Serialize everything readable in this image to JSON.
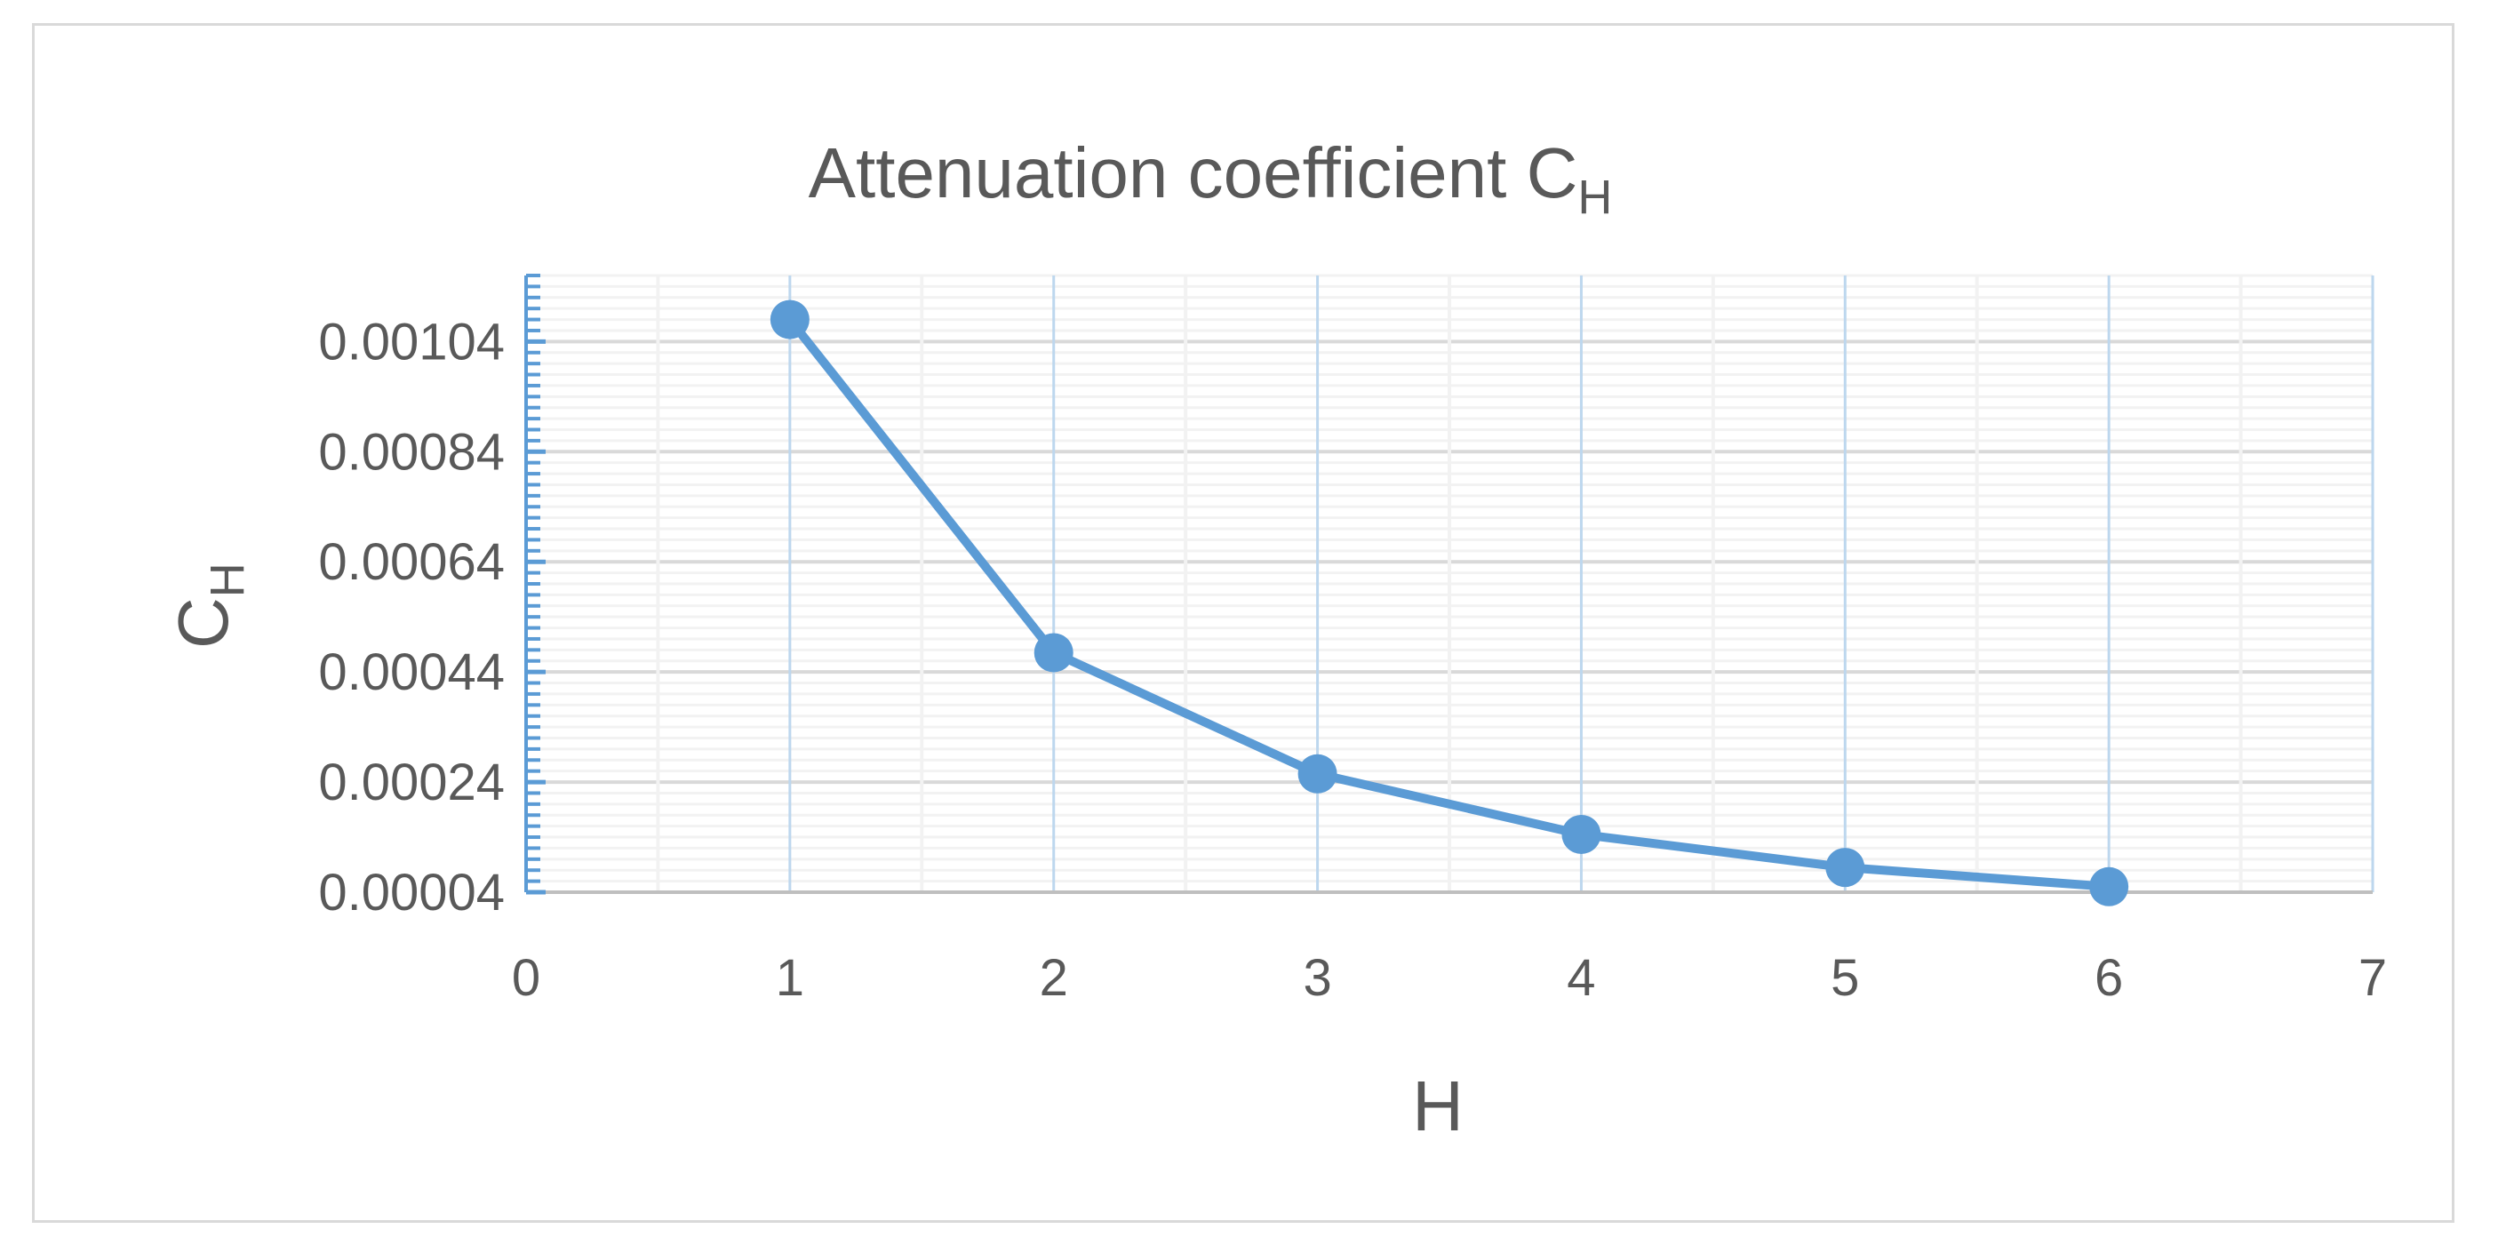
{
  "chart_data": {
    "type": "line",
    "title": "Attenuation  coefficient C",
    "title_subscript": "H",
    "xlabel": "H",
    "ylabel": "C",
    "ylabel_subscript": "H",
    "x": [
      1,
      2,
      3,
      4,
      5,
      6
    ],
    "series": [
      {
        "values": [
          0.00108,
          0.000475,
          0.000255,
          0.000145,
          8.5e-05,
          5e-05
        ]
      }
    ],
    "xlim": [
      0,
      7
    ],
    "ylim": [
      4e-05,
      0.00116
    ],
    "x_ticks": [
      "0",
      "1",
      "2",
      "3",
      "4",
      "5",
      "6",
      "7"
    ],
    "y_ticks": [
      "0.00004",
      "0.00024",
      "0.00044",
      "0.00064",
      "0.00084",
      "0.00104"
    ],
    "grid": true,
    "legend": "none",
    "colors": {
      "series": "#5b9bd5",
      "text": "#595959",
      "major_grid": "#d9d9d9",
      "minor_grid": "#f2f2f2",
      "vertical_grid": "#bdd7ee",
      "frame": "#d9d9d9"
    }
  }
}
